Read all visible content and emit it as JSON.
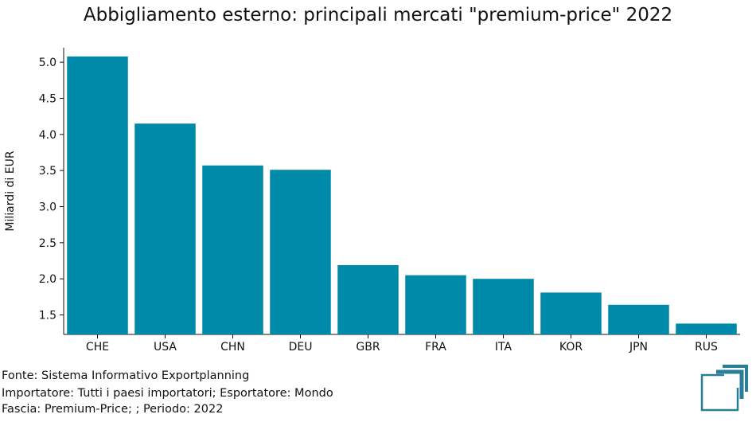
{
  "chart_data": {
    "type": "bar",
    "title": "Abbigliamento esterno: principali mercati \"premium-price\" 2022",
    "xlabel": "",
    "ylabel": "Miliardi di EUR",
    "categories": [
      "CHE",
      "USA",
      "CHN",
      "DEU",
      "GBR",
      "FRA",
      "ITA",
      "KOR",
      "JPN",
      "RUS"
    ],
    "values": [
      5.08,
      4.15,
      3.57,
      3.51,
      2.19,
      2.05,
      2.0,
      1.81,
      1.64,
      1.38
    ],
    "ylim": [
      1.23,
      5.2
    ],
    "yticks": [
      1.5,
      2.0,
      2.5,
      3.0,
      3.5,
      4.0,
      4.5,
      5.0
    ],
    "ytick_labels": [
      "1.5",
      "2.0",
      "2.5",
      "3.0",
      "3.5",
      "4.0",
      "4.5",
      "5.0"
    ],
    "bar_color": "#008aaa",
    "grid": false,
    "legend": "none"
  },
  "footer": {
    "source": "Fonte: Sistema Informativo Exportplanning",
    "importer": "Importatore: Tutti i paesi importatori; Esportatore: Mondo",
    "range": "Fascia: Premium-Price; ; Periodo: 2022"
  },
  "logo": {
    "icon": "exportplanning-logo-icon",
    "color": "#2a7f98"
  }
}
